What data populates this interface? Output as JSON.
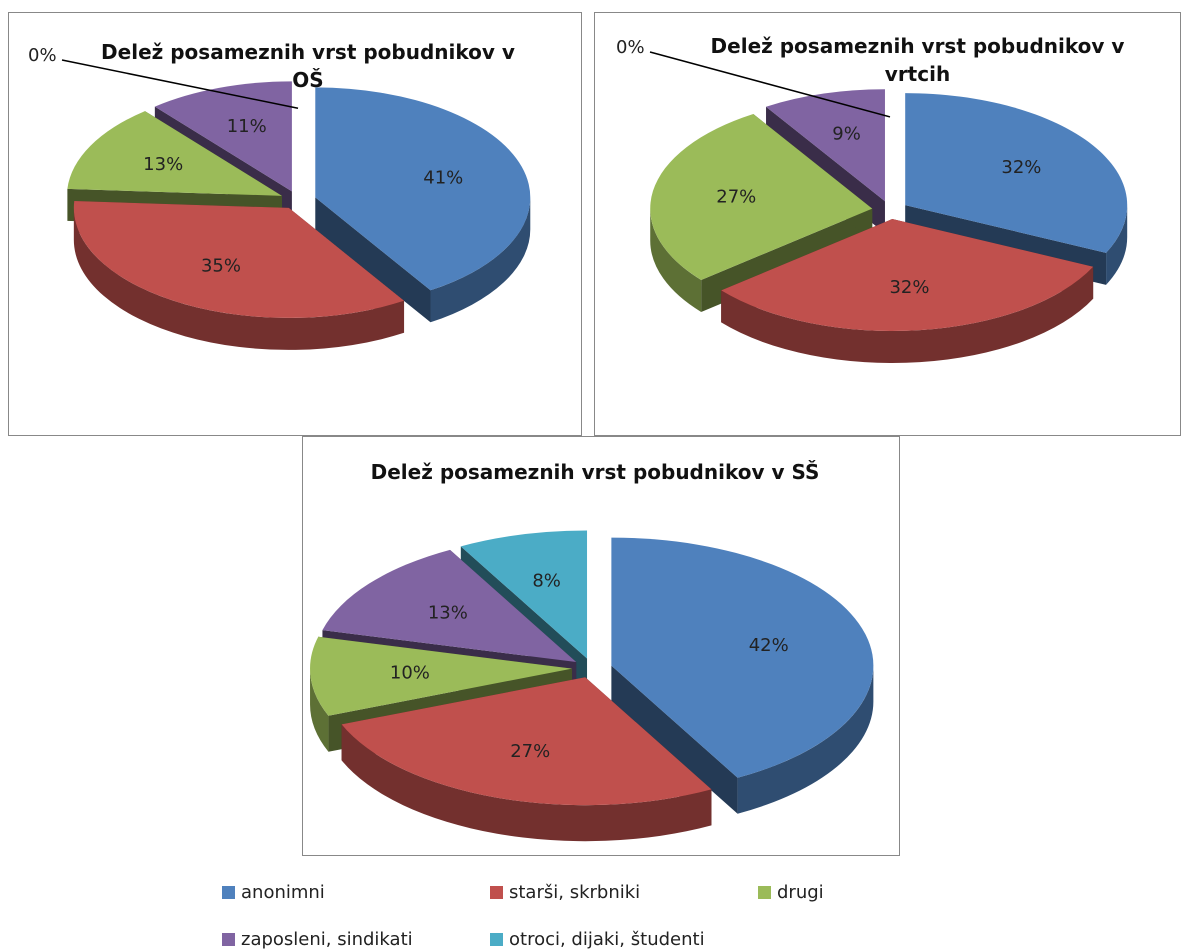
{
  "chart_data": [
    {
      "type": "pie",
      "title": "Delež posameznih vrst pobudnikov v OŠ",
      "categories": [
        "anonimni",
        "starši, skrbniki",
        "drugi",
        "zaposleni, sindikati",
        "otroci, dijaki, študenti"
      ],
      "values": [
        41,
        35,
        13,
        11,
        0
      ],
      "value_labels": [
        "41%",
        "35%",
        "13%",
        "11%",
        "0%"
      ],
      "colors": [
        "#4f81bd",
        "#c0504d",
        "#9bbb59",
        "#8064a2",
        "#4bacc6"
      ]
    },
    {
      "type": "pie",
      "title": "Delež posameznih vrst pobudnikov v vrtcih",
      "categories": [
        "anonimni",
        "starši, skrbniki",
        "drugi",
        "zaposleni, sindikati",
        "otroci, dijaki, študenti"
      ],
      "values": [
        32,
        32,
        27,
        9,
        0
      ],
      "value_labels": [
        "32%",
        "32%",
        "27%",
        "9%",
        "0%"
      ],
      "colors": [
        "#4f81bd",
        "#c0504d",
        "#9bbb59",
        "#8064a2",
        "#4bacc6"
      ]
    },
    {
      "type": "pie",
      "title": "Delež posameznih vrst pobudnikov v SŠ",
      "categories": [
        "anonimni",
        "starši, skrbniki",
        "drugi",
        "zaposleni, sindikati",
        "otroci, dijaki, študenti"
      ],
      "values": [
        42,
        27,
        10,
        13,
        8
      ],
      "value_labels": [
        "42%",
        "27%",
        "10%",
        "13%",
        "8%"
      ],
      "colors": [
        "#4f81bd",
        "#c0504d",
        "#9bbb59",
        "#8064a2",
        "#4bacc6"
      ]
    }
  ]
}
